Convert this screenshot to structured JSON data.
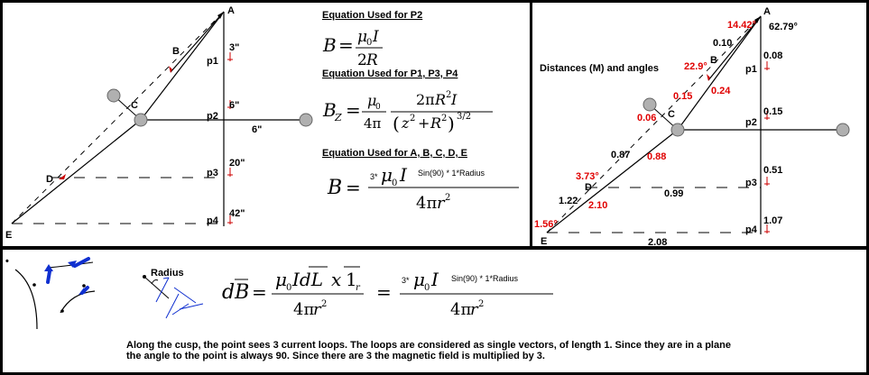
{
  "left_panel": {
    "points": {
      "A": "A",
      "B": "B",
      "C": "C",
      "D": "D",
      "E": "E"
    },
    "p_labels": [
      "p1",
      "p2",
      "p3",
      "p4"
    ],
    "distances": [
      "3\"",
      "6\"",
      "20\"",
      "42\"",
      "6\""
    ],
    "eq_headings": [
      "Equation Used for P2",
      "Equation Used for P1, P3, P4",
      "Equation Used for A, B, C, D, E"
    ],
    "sin_text": "Sin(90)  * 1*Radius",
    "three_mult": "3*"
  },
  "right_panel": {
    "title": "Distances (M) and angles",
    "points": {
      "A": "A",
      "B": "B",
      "C": "C",
      "D": "D",
      "E": "E"
    },
    "p_labels": [
      "p1",
      "p2",
      "p3",
      "p4"
    ],
    "angles": [
      "14.42°",
      "62.79°",
      "22.9°",
      "3.73°",
      "1.56°"
    ],
    "black_values": [
      "0.10",
      "0.08",
      "0.15",
      "0.87",
      "0.51",
      "1.22",
      "0.99",
      "1.07",
      "2.08"
    ],
    "red_values": [
      "0.15",
      "0.24",
      "0.06",
      "0.88",
      "2.10"
    ]
  },
  "bottom_panel": {
    "bullet": "•",
    "radius_label": "Radius",
    "sin_text": "Sin(90)  * 1*Radius",
    "three_mult": "3*",
    "note_line1": "Along the cusp, the point sees 3 current loops.  The loops are considered as single vectors, of length 1.  Since they are in a plane",
    "note_line2": "the angle to the point is always 90.  Since there are 3 the magnetic field is multiplied by 3."
  }
}
